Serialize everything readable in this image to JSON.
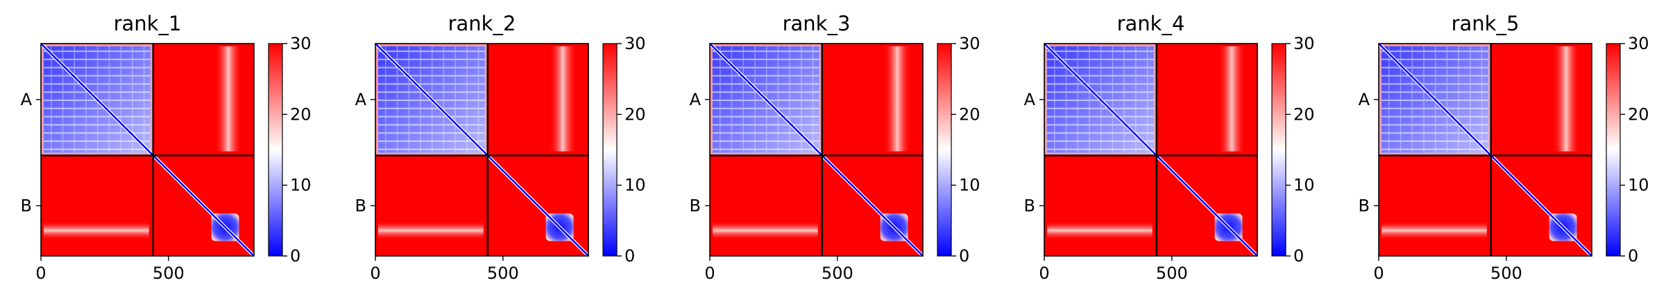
{
  "figure": {
    "background": "#ffffff"
  },
  "colormap": {
    "name": "bwr",
    "low": "#0000ff",
    "mid": "#ffffff",
    "high": "#ff0000"
  },
  "chart_data": [
    {
      "type": "heatmap",
      "title": "rank_1",
      "x_ticks": [
        0,
        500
      ],
      "y_ticks": [
        "A",
        "B"
      ],
      "colorbar": {
        "ticks": [
          0,
          10,
          20,
          30
        ],
        "range": [
          0,
          30
        ]
      },
      "chains": [
        {
          "name": "A",
          "length": 440
        },
        {
          "name": "B",
          "length": 395
        }
      ],
      "matrix_size": 835
    },
    {
      "type": "heatmap",
      "title": "rank_2",
      "x_ticks": [
        0,
        500
      ],
      "y_ticks": [
        "A",
        "B"
      ],
      "colorbar": {
        "ticks": [
          0,
          10,
          20,
          30
        ],
        "range": [
          0,
          30
        ]
      },
      "chains": [
        {
          "name": "A",
          "length": 440
        },
        {
          "name": "B",
          "length": 395
        }
      ],
      "matrix_size": 835
    },
    {
      "type": "heatmap",
      "title": "rank_3",
      "x_ticks": [
        0,
        500
      ],
      "y_ticks": [
        "A",
        "B"
      ],
      "colorbar": {
        "ticks": [
          0,
          10,
          20,
          30
        ],
        "range": [
          0,
          30
        ]
      },
      "chains": [
        {
          "name": "A",
          "length": 440
        },
        {
          "name": "B",
          "length": 395
        }
      ],
      "matrix_size": 835
    },
    {
      "type": "heatmap",
      "title": "rank_4",
      "x_ticks": [
        0,
        500
      ],
      "y_ticks": [
        "A",
        "B"
      ],
      "colorbar": {
        "ticks": [
          0,
          10,
          20,
          30
        ],
        "range": [
          0,
          30
        ]
      },
      "chains": [
        {
          "name": "A",
          "length": 440
        },
        {
          "name": "B",
          "length": 395
        }
      ],
      "matrix_size": 835
    },
    {
      "type": "heatmap",
      "title": "rank_5",
      "x_ticks": [
        0,
        500
      ],
      "y_ticks": [
        "A",
        "B"
      ],
      "colorbar": {
        "ticks": [
          0,
          10,
          20,
          30
        ],
        "range": [
          0,
          30
        ]
      },
      "chains": [
        {
          "name": "A",
          "length": 440
        },
        {
          "name": "B",
          "length": 395
        }
      ],
      "matrix_size": 835
    }
  ]
}
